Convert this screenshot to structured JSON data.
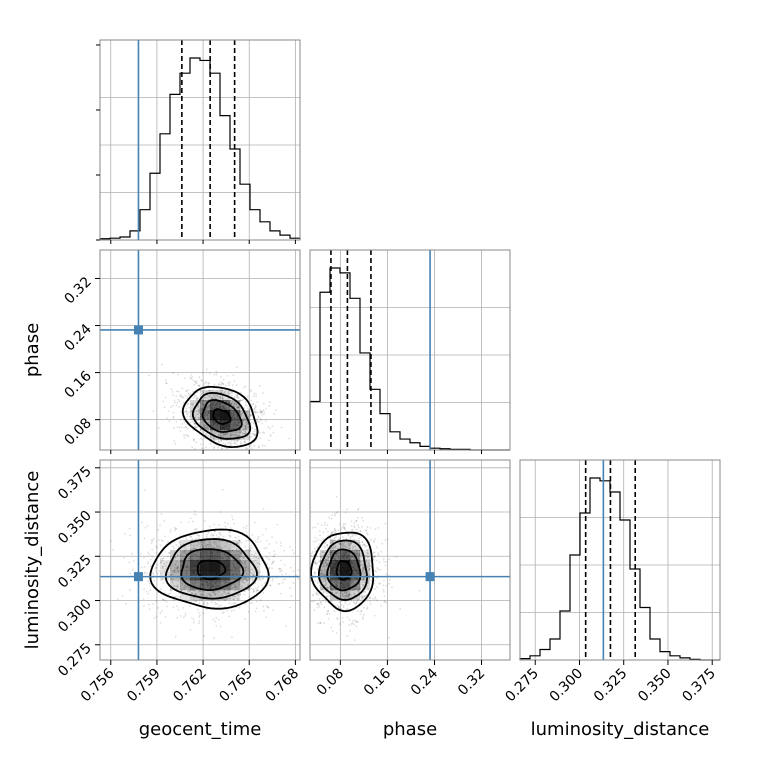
{
  "chart_data": {
    "type": "corner",
    "parameters": [
      "geocent_time",
      "phase",
      "luminosity_distance"
    ],
    "truths": {
      "geocent_time": 0.7578,
      "phase": 0.2325,
      "luminosity_distance": 0.3135
    },
    "quantiles": {
      "geocent_time": [
        0.76062,
        0.76246,
        0.76405
      ],
      "phase": [
        0.064,
        0.092,
        0.132
      ],
      "luminosity_distance": [
        0.3035,
        0.3175,
        0.3315
      ]
    },
    "axes": {
      "geocent_time": {
        "label": "geocent_time",
        "range": [
          0.7553,
          0.7683
        ],
        "ticks": [
          "0.756",
          "0.759",
          "0.762",
          "0.765",
          "0.768"
        ],
        "tick_values": [
          0.756,
          0.759,
          0.762,
          0.765,
          0.768
        ]
      },
      "phase": {
        "label": "phase",
        "range": [
          0.0284,
          0.3684
        ],
        "ticks": [
          "0.08",
          "0.16",
          "0.24",
          "0.32"
        ],
        "tick_values": [
          0.08,
          0.16,
          0.24,
          0.32
        ]
      },
      "luminosity_distance": {
        "label": "luminosity_distance",
        "range": [
          0.2664,
          0.3794
        ],
        "ticks": [
          "0.275",
          "0.300",
          "0.325",
          "0.350",
          "0.375"
        ],
        "tick_values": [
          0.275,
          0.3,
          0.325,
          0.35,
          0.375
        ]
      }
    },
    "histograms": {
      "geocent_time": {
        "bin_edges": [
          0.7553,
          0.75595,
          0.7566,
          0.75725,
          0.7579,
          0.75855,
          0.7592,
          0.75985,
          0.7605,
          0.76115,
          0.7618,
          0.76245,
          0.7631,
          0.76375,
          0.7644,
          0.76505,
          0.7657,
          0.76635,
          0.767,
          0.76765,
          0.7683
        ],
        "counts": [
          2,
          3,
          5,
          15,
          50,
          110,
          175,
          240,
          275,
          300,
          296,
          275,
          205,
          150,
          92,
          50,
          30,
          15,
          8,
          3
        ]
      },
      "phase": {
        "bin_edges": [
          0.0284,
          0.0454,
          0.0624,
          0.0794,
          0.0964,
          0.1134,
          0.1304,
          0.1474,
          0.1644,
          0.1814,
          0.1984,
          0.2154,
          0.2324,
          0.2494,
          0.2664,
          0.2834,
          0.3004,
          0.3174,
          0.3344,
          0.3514,
          0.3684
        ],
        "counts": [
          80,
          260,
          300,
          292,
          250,
          160,
          100,
          60,
          30,
          18,
          12,
          6,
          3,
          2,
          1,
          1,
          0,
          0,
          0,
          0
        ]
      },
      "luminosity_distance": {
        "bin_edges": [
          0.2664,
          0.27205,
          0.2777,
          0.28335,
          0.289,
          0.29465,
          0.3003,
          0.30595,
          0.3116,
          0.31725,
          0.3229,
          0.32855,
          0.3342,
          0.33985,
          0.3455,
          0.35115,
          0.3568,
          0.36245,
          0.3681,
          0.37375,
          0.3794
        ],
        "counts": [
          2,
          6,
          15,
          30,
          70,
          150,
          210,
          260,
          256,
          240,
          200,
          130,
          75,
          30,
          12,
          6,
          3,
          1,
          0,
          0
        ]
      }
    },
    "density_2d": [
      {
        "x": "geocent_time",
        "y": "phase",
        "center": [
          0.7632,
          0.085
        ],
        "spread": [
          0.0012,
          0.022
        ],
        "rotation_deg": -28,
        "contour_levels": [
          0.5,
          1.1,
          1.6,
          2.1
        ]
      },
      {
        "x": "geocent_time",
        "y": "luminosity_distance",
        "center": [
          0.7625,
          0.3175
        ],
        "spread": [
          0.0018,
          0.0105
        ],
        "rotation_deg": 0,
        "contour_levels": [
          0.5,
          1.1,
          1.6,
          2.1
        ]
      },
      {
        "x": "phase",
        "y": "luminosity_distance",
        "center": [
          0.086,
          0.317
        ],
        "spread": [
          0.025,
          0.0105
        ],
        "rotation_deg": 0,
        "contour_levels": [
          0.5,
          1.1,
          1.6,
          2.1
        ]
      }
    ],
    "colors": {
      "truth": "#4682b4",
      "hist": "#000000",
      "quantile": "#000000",
      "grid": "#b0b0b0"
    },
    "grid": true
  }
}
